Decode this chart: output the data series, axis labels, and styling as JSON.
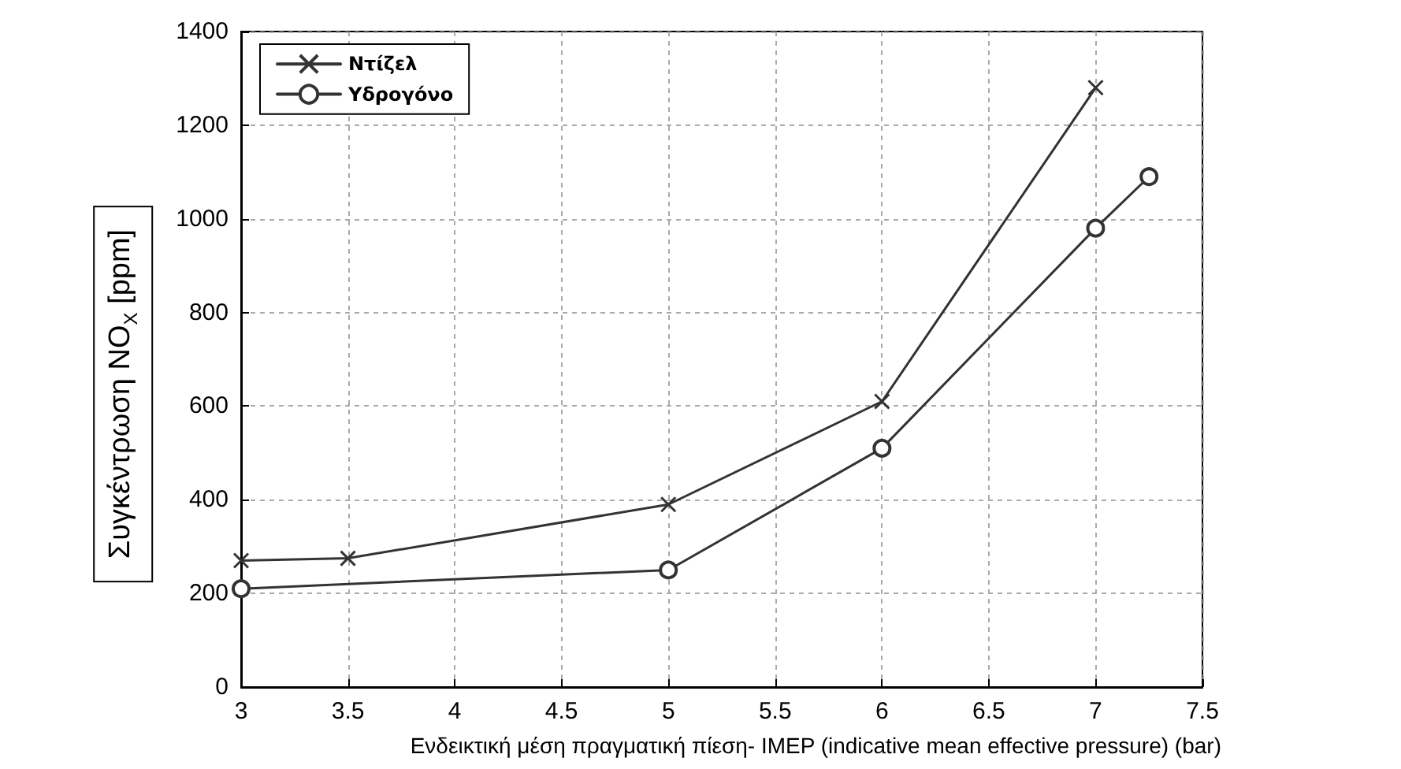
{
  "chart_data": {
    "type": "line",
    "xlabel": "Ενδεικτική μέση πραγματική πίεση- IMEP (indicative mean effective pressure) (bar)",
    "ylabel": "Συγκέντρωση NO$_{X}$ [ppm]",
    "xlim": [
      3,
      7.5
    ],
    "xticks": [
      3,
      3.5,
      4,
      4.5,
      5,
      5.5,
      6,
      6.5,
      7,
      7.5
    ],
    "ylim": [
      0,
      1400
    ],
    "yticks": [
      0,
      200,
      400,
      600,
      800,
      1000,
      1200,
      1400
    ],
    "grid": true,
    "legend": "top left",
    "line_style": "solid",
    "series": [
      {
        "name": "Ντίζελ",
        "color": "#333333",
        "marker": "cross",
        "x": [
          3,
          3.5,
          5,
          6,
          7
        ],
        "values": [
          270,
          275,
          390,
          610,
          1280
        ]
      },
      {
        "name": "Υδρογόνο",
        "color": "#333333",
        "marker": "circle",
        "x": [
          3,
          5,
          6,
          7,
          7.25
        ],
        "values": [
          210,
          250,
          510,
          980,
          1090
        ]
      }
    ]
  }
}
